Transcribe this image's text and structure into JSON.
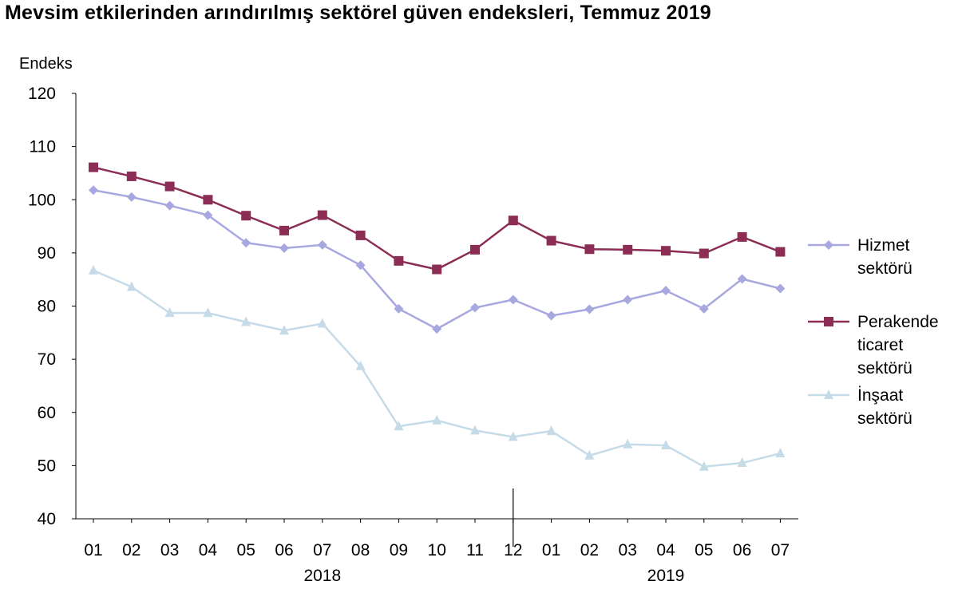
{
  "title": "Mevsim etkilerinden arındırılmış sektörel güven endeksleri, Temmuz 2019",
  "chart_data": {
    "type": "line",
    "title": "Mevsim etkilerinden arındırılmış sektörel güven endeksleri, Temmuz 2019",
    "ylabel": "Endeks",
    "xlabel": "",
    "ylim": [
      40,
      120
    ],
    "yticks": [
      40,
      50,
      60,
      70,
      80,
      90,
      100,
      110,
      120
    ],
    "categories": [
      "01",
      "02",
      "03",
      "04",
      "05",
      "06",
      "07",
      "08",
      "09",
      "10",
      "11",
      "12",
      "01",
      "02",
      "03",
      "04",
      "05",
      "06",
      "07"
    ],
    "year_labels": [
      {
        "label": "2018",
        "under_index": 6
      },
      {
        "label": "2019",
        "under_index": 15
      }
    ],
    "year_separator_after_index": 11,
    "legend_position": "right",
    "grid": false,
    "series": [
      {
        "name": "Hizmet sektörü",
        "legend_lines": [
          "Hizmet",
          "sektörü"
        ],
        "color": "#a8a8e0",
        "marker": "diamond",
        "values": [
          101.8,
          100.5,
          98.9,
          97.1,
          91.9,
          90.9,
          91.5,
          87.7,
          79.5,
          75.7,
          79.7,
          81.2,
          78.2,
          79.4,
          81.2,
          82.9,
          79.5,
          85.1,
          83.3
        ]
      },
      {
        "name": "Perakende ticaret sektörü",
        "legend_lines": [
          "Perakende",
          "ticaret",
          "sektörü"
        ],
        "color": "#8c2d55",
        "marker": "square",
        "values": [
          106.1,
          104.4,
          102.5,
          100.0,
          97.0,
          94.2,
          97.1,
          93.3,
          88.5,
          86.9,
          90.6,
          96.1,
          92.3,
          90.7,
          90.6,
          90.4,
          89.9,
          93.0,
          90.2
        ]
      },
      {
        "name": "İnşaat sektörü",
        "legend_lines": [
          "İnşaat",
          "sektörü"
        ],
        "color": "#c6dbe8",
        "marker": "triangle",
        "values": [
          86.7,
          83.6,
          78.7,
          78.7,
          77.0,
          75.4,
          76.7,
          68.7,
          57.4,
          58.5,
          56.6,
          55.4,
          56.5,
          51.9,
          54.0,
          53.8,
          49.8,
          50.5,
          52.3
        ]
      }
    ]
  }
}
